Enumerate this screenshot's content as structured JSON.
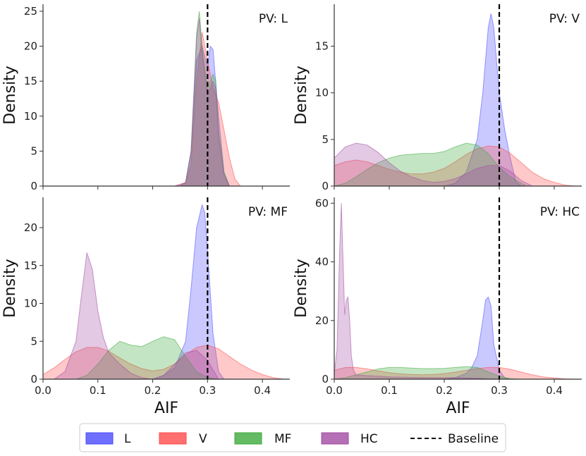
{
  "chart_data": {
    "type": "area",
    "kind": "kernel density estimate",
    "xlabel": "AIF",
    "ylabel": "Density",
    "xlim": [
      0.0,
      0.45
    ],
    "xticks": [
      0.0,
      0.1,
      0.2,
      0.3,
      0.4
    ],
    "xtick_labels": [
      "0.0",
      "0.1",
      "0.2",
      "0.3",
      "0.4"
    ],
    "baseline": {
      "x": 0.3,
      "label": "Baseline",
      "style": "dashed",
      "color": "#000000"
    },
    "series_styles": [
      {
        "name": "L",
        "color": "#4B4BFF"
      },
      {
        "name": "V",
        "color": "#FF4B4B"
      },
      {
        "name": "MF",
        "color": "#3DAA3D"
      },
      {
        "name": "HC",
        "color": "#A24BA2"
      }
    ],
    "legend": {
      "position": "bottom-center",
      "items": [
        "L",
        "V",
        "MF",
        "HC",
        "Baseline"
      ]
    },
    "panels": [
      {
        "title": "PV: L",
        "ylim": [
          0,
          26
        ],
        "yticks": [
          0,
          5,
          10,
          15,
          20,
          25
        ],
        "series": [
          {
            "name": "L",
            "x": [
              0.24,
              0.26,
              0.27,
              0.28,
              0.29,
              0.3,
              0.305,
              0.31,
              0.32,
              0.33,
              0.34
            ],
            "values": [
              0,
              0.5,
              5,
              18,
              20,
              17,
              20,
              19.5,
              10,
              2,
              0
            ]
          },
          {
            "name": "V",
            "x": [
              0.24,
              0.26,
              0.27,
              0.28,
              0.29,
              0.3,
              0.31,
              0.32,
              0.33,
              0.34,
              0.35,
              0.36
            ],
            "values": [
              0,
              0.5,
              3,
              15,
              22,
              18,
              14,
              12,
              8,
              4,
              1,
              0
            ]
          },
          {
            "name": "MF",
            "x": [
              0.25,
              0.26,
              0.27,
              0.28,
              0.285,
              0.29,
              0.3,
              0.31,
              0.315,
              0.32,
              0.33,
              0.34
            ],
            "values": [
              0,
              0.5,
              5,
              22,
              25,
              20,
              14,
              16,
              15,
              8,
              2,
              0
            ]
          },
          {
            "name": "HC",
            "x": [
              0.25,
              0.26,
              0.27,
              0.28,
              0.285,
              0.29,
              0.3,
              0.31,
              0.315,
              0.32,
              0.33,
              0.34
            ],
            "values": [
              0,
              0.5,
              5,
              21,
              24,
              19,
              13,
              15,
              14,
              7,
              1.5,
              0
            ]
          }
        ]
      },
      {
        "title": "PV: V",
        "ylim": [
          0,
          19.5
        ],
        "yticks": [
          0,
          5,
          10,
          15
        ],
        "series": [
          {
            "name": "L",
            "x": [
              0.2,
              0.22,
              0.24,
              0.26,
              0.27,
              0.28,
              0.285,
              0.29,
              0.3,
              0.31,
              0.32,
              0.33,
              0.34
            ],
            "values": [
              0,
              0.3,
              1.5,
              5,
              10,
              17,
              18.5,
              17,
              10,
              6,
              3,
              0.5,
              0
            ]
          },
          {
            "name": "V",
            "x": [
              0.0,
              0.02,
              0.04,
              0.06,
              0.08,
              0.1,
              0.12,
              0.14,
              0.16,
              0.18,
              0.2,
              0.22,
              0.24,
              0.26,
              0.28,
              0.3,
              0.32,
              0.34,
              0.36,
              0.38,
              0.4,
              0.42,
              0.44
            ],
            "values": [
              2.2,
              2.6,
              2.8,
              2.6,
              2.2,
              1.8,
              1.5,
              1.3,
              1.3,
              1.5,
              1.9,
              2.6,
              3.4,
              4.0,
              4.3,
              4.2,
              3.5,
              2.5,
              1.5,
              0.8,
              0.4,
              0.1,
              0
            ]
          },
          {
            "name": "MF",
            "x": [
              0.0,
              0.02,
              0.04,
              0.06,
              0.08,
              0.1,
              0.12,
              0.14,
              0.16,
              0.18,
              0.2,
              0.22,
              0.24,
              0.26,
              0.28,
              0.3,
              0.32,
              0.34,
              0.35
            ],
            "values": [
              0,
              0.3,
              1.0,
              1.8,
              2.5,
              3.0,
              3.3,
              3.4,
              3.5,
              3.5,
              3.7,
              4.2,
              4.6,
              4.4,
              3.5,
              2.0,
              1.0,
              0.3,
              0
            ]
          },
          {
            "name": "HC",
            "x": [
              0.0,
              0.02,
              0.04,
              0.06,
              0.08,
              0.1,
              0.12,
              0.14,
              0.16,
              0.18,
              0.2,
              0.22,
              0.24,
              0.26,
              0.28,
              0.3,
              0.32,
              0.34,
              0.36
            ],
            "values": [
              3.0,
              4.2,
              4.6,
              4.4,
              3.6,
              2.5,
              1.6,
              1.0,
              0.6,
              0.4,
              0.5,
              0.8,
              1.3,
              1.9,
              2.2,
              2.2,
              1.6,
              0.6,
              0
            ]
          }
        ]
      },
      {
        "title": "PV: MF",
        "ylim": [
          0,
          24
        ],
        "yticks": [
          0,
          5,
          10,
          15,
          20
        ],
        "series": [
          {
            "name": "L",
            "x": [
              0.2,
              0.22,
              0.24,
              0.26,
              0.27,
              0.28,
              0.29,
              0.295,
              0.3,
              0.31,
              0.32,
              0.33
            ],
            "values": [
              0,
              0.5,
              1.5,
              5,
              12,
              20,
              23,
              22,
              17,
              6,
              1,
              0
            ]
          },
          {
            "name": "V",
            "x": [
              0.0,
              0.02,
              0.04,
              0.06,
              0.08,
              0.1,
              0.12,
              0.14,
              0.16,
              0.18,
              0.2,
              0.22,
              0.24,
              0.26,
              0.28,
              0.3,
              0.32,
              0.34,
              0.36,
              0.38,
              0.4,
              0.42,
              0.44
            ],
            "values": [
              0.6,
              1.5,
              2.6,
              3.6,
              4.2,
              4.2,
              3.7,
              2.8,
              2.0,
              1.4,
              1.1,
              1.3,
              2.0,
              3.2,
              4.2,
              4.5,
              4.0,
              3.0,
              2.0,
              1.2,
              0.6,
              0.2,
              0
            ]
          },
          {
            "name": "MF",
            "x": [
              0.06,
              0.08,
              0.1,
              0.12,
              0.14,
              0.16,
              0.18,
              0.2,
              0.22,
              0.24,
              0.26,
              0.28,
              0.3,
              0.32
            ],
            "values": [
              0,
              0.5,
              2.0,
              3.8,
              5.0,
              4.5,
              4.3,
              5.0,
              5.6,
              5.2,
              3.0,
              1.0,
              0.2,
              0
            ]
          },
          {
            "name": "HC",
            "x": [
              0.02,
              0.04,
              0.06,
              0.07,
              0.08,
              0.09,
              0.1,
              0.11,
              0.12,
              0.14,
              0.16,
              0.18,
              0.2,
              0.22,
              0.24,
              0.26,
              0.28,
              0.3,
              0.32
            ],
            "values": [
              0,
              1.0,
              5.0,
              11,
              16.7,
              14.5,
              9,
              5.5,
              3.5,
              2.0,
              0.8,
              0.2,
              0,
              0.5,
              2.0,
              3.5,
              3.8,
              2.5,
              0
            ]
          }
        ]
      },
      {
        "title": "PV: HC",
        "ylim": [
          0,
          62
        ],
        "yticks": [
          0,
          20,
          40,
          60
        ],
        "series": [
          {
            "name": "L",
            "x": [
              0.2,
              0.22,
              0.24,
              0.25,
              0.26,
              0.27,
              0.275,
              0.28,
              0.285,
              0.29,
              0.3,
              0.31,
              0.32
            ],
            "values": [
              0,
              0.5,
              2,
              4,
              8,
              20,
              27,
              28,
              25,
              12,
              3,
              0.5,
              0
            ]
          },
          {
            "name": "V",
            "x": [
              0.0,
              0.02,
              0.04,
              0.06,
              0.08,
              0.1,
              0.12,
              0.14,
              0.16,
              0.18,
              0.2,
              0.22,
              0.24,
              0.26,
              0.28,
              0.3,
              0.32,
              0.34,
              0.36,
              0.38,
              0.4,
              0.42,
              0.44
            ],
            "values": [
              3.0,
              4.0,
              4.0,
              3.5,
              2.8,
              2.2,
              1.8,
              1.6,
              1.5,
              1.6,
              1.9,
              2.4,
              3.0,
              3.6,
              4.0,
              4.0,
              3.4,
              2.4,
              1.5,
              0.8,
              0.4,
              0.1,
              0
            ]
          },
          {
            "name": "MF",
            "x": [
              0.0,
              0.02,
              0.04,
              0.06,
              0.08,
              0.1,
              0.12,
              0.14,
              0.16,
              0.18,
              0.2,
              0.22,
              0.24,
              0.26,
              0.28,
              0.3,
              0.32,
              0.34
            ],
            "values": [
              0,
              0.5,
              1.5,
              2.5,
              3.5,
              4.0,
              4.0,
              3.8,
              3.6,
              3.6,
              3.7,
              4.0,
              4.3,
              4.0,
              2.5,
              1.0,
              0.2,
              0
            ]
          },
          {
            "name": "HC",
            "x": [
              0.0,
              0.005,
              0.01,
              0.013,
              0.016,
              0.019,
              0.022,
              0.025,
              0.028,
              0.031,
              0.035,
              0.04,
              0.06,
              0.08,
              0.1,
              0.14,
              0.18,
              0.22,
              0.26,
              0.3
            ],
            "values": [
              2,
              10,
              45,
              60,
              40,
              22,
              27,
              28,
              20,
              8,
              3,
              1.5,
              1.2,
              1.0,
              0.8,
              0.6,
              0.5,
              0.5,
              0.3,
              0
            ]
          }
        ]
      }
    ]
  }
}
